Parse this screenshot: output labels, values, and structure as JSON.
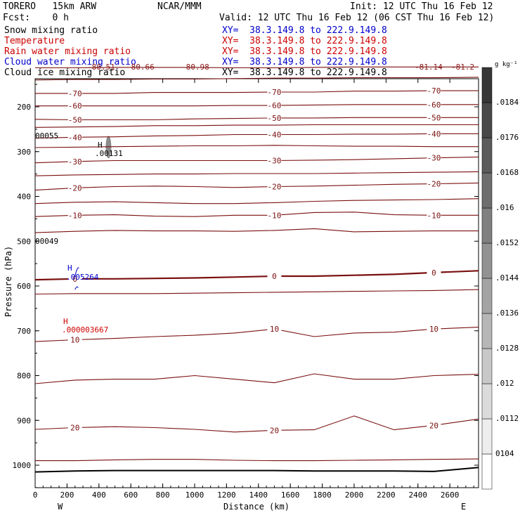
{
  "header": {
    "model": "TORERO   15km ARW",
    "center": "NCAR/MMM",
    "init": "Init: 12 UTC Thu 16 Feb 12",
    "fcst": "Fcst:    0 h",
    "valid": "Valid: 12 UTC Thu 16 Feb 12 (06 CST Thu 16 Feb 12)"
  },
  "legend": [
    {
      "label": "Snow mixing ratio",
      "xy": "XY=  38.3.149.8 to 222.9.149.8",
      "color": "#000000"
    },
    {
      "label": "Temperature",
      "xy": "XY=  38.3.149.8 to 222.9.149.8",
      "color": "#cc0000"
    },
    {
      "label": "Rain water mixing ratio",
      "xy": "XY=  38.3.149.8 to 222.9.149.8",
      "color": "#cc0000"
    },
    {
      "label": "Cloud water mixing ratio",
      "xy": "XY=  38.3.149.8 to 222.9.149.8",
      "color": "#0000cc"
    },
    {
      "label": "Cloud ice mixing ratio",
      "xy": "XY=  38.3.149.8 to 222.9.149.8",
      "color": "#000000"
    }
  ],
  "colorbar": {
    "unit": "g kg⁻¹",
    "ticks": [
      "0104",
      ".0112",
      ".012",
      ".0128",
      ".0136",
      ".0144",
      ".0152",
      ".016",
      ".0168",
      ".0176",
      ".0184"
    ]
  },
  "annotations": {
    "snow_max": ".00131",
    "cloud_water_max": ".005264",
    "rain_max": ".000003667",
    "left_300": "00055",
    "left_500": "00049",
    "h_letter": "H",
    "top_minus80_labels": [
      "-80.51",
      "-80.66",
      "-80.98",
      "-81.14",
      "-81.2"
    ]
  },
  "chart_data": {
    "type": "contour",
    "xlabel": "Distance (km)",
    "ylabel": "Pressure (hPa)",
    "x_ticks": [
      0,
      200,
      400,
      600,
      800,
      1000,
      1200,
      1400,
      1600,
      1800,
      2000,
      2200,
      2400,
      2600
    ],
    "y_ticks": [
      200,
      300,
      400,
      500,
      600,
      700,
      800,
      900,
      1000
    ],
    "xlim": [
      0,
      2780
    ],
    "ylim": [
      1050,
      110
    ],
    "x_end_labels": {
      "left": "W",
      "right": "E"
    },
    "temperature_contours": [
      {
        "level": -80,
        "p": [
          113,
          113,
          112,
          112,
          112,
          113,
          113,
          112,
          111,
          111,
          111,
          111
        ]
      },
      {
        "level": -75,
        "p": [
          140,
          139,
          139,
          138,
          138,
          137,
          136,
          136,
          135,
          135,
          135,
          134
        ]
      },
      {
        "level": -70,
        "p": [
          170,
          170,
          170,
          168,
          168,
          168,
          167,
          167,
          165,
          165,
          164,
          164
        ]
      },
      {
        "level": -60,
        "p": [
          198,
          198,
          198,
          198,
          198,
          197,
          197,
          196,
          195,
          195,
          195,
          195
        ]
      },
      {
        "level": -50,
        "p": [
          228,
          229,
          229,
          229,
          227,
          226,
          225,
          225,
          224,
          224,
          224,
          224
        ]
      },
      {
        "level": -45,
        "p": [
          246,
          245,
          244,
          242,
          242,
          241,
          241,
          240,
          240,
          240,
          240,
          240
        ]
      },
      {
        "level": -40,
        "p": [
          270,
          268,
          267,
          265,
          264,
          262,
          262,
          262,
          261,
          261,
          260,
          260
        ]
      },
      {
        "level": -35,
        "p": [
          291,
          290,
          289,
          288,
          287,
          287,
          286,
          287,
          288,
          288,
          289,
          289
        ]
      },
      {
        "level": -30,
        "p": [
          325,
          322,
          320,
          320,
          320,
          320,
          320,
          319,
          318,
          316,
          314,
          312
        ]
      },
      {
        "level": -25,
        "p": [
          354,
          352,
          351,
          350,
          350,
          349,
          349,
          349,
          348,
          347,
          346,
          345
        ]
      },
      {
        "level": -20,
        "p": [
          386,
          381,
          378,
          377,
          378,
          380,
          378,
          377,
          375,
          373,
          372,
          370
        ]
      },
      {
        "level": -15,
        "p": [
          416,
          413,
          412,
          414,
          416,
          416,
          414,
          411,
          409,
          408,
          407,
          405
        ]
      },
      {
        "level": -10,
        "p": [
          445,
          442,
          441,
          444,
          445,
          442,
          442,
          436,
          435,
          441,
          442,
          442
        ]
      },
      {
        "level": -5,
        "p": [
          481,
          478,
          476,
          477,
          477,
          478,
          476,
          472,
          479,
          478,
          477,
          477
        ]
      },
      {
        "level": 0,
        "p": [
          586,
          584,
          584,
          583,
          582,
          580,
          578,
          578,
          576,
          574,
          570,
          566
        ]
      },
      {
        "level": 5,
        "p": [
          618,
          617,
          617,
          617,
          616,
          615,
          614,
          613,
          612,
          611,
          610,
          608
        ]
      },
      {
        "level": 10,
        "p": [
          724,
          720,
          717,
          713,
          710,
          705,
          696,
          713,
          705,
          703,
          696,
          692
        ]
      },
      {
        "level": 15,
        "p": [
          818,
          810,
          808,
          808,
          800,
          808,
          816,
          796,
          808,
          808,
          800,
          797
        ]
      },
      {
        "level": 20,
        "p": [
          920,
          916,
          914,
          916,
          920,
          926,
          922,
          921,
          890,
          921,
          911,
          897
        ]
      },
      {
        "level": 25,
        "p": [
          990,
          990,
          988,
          987,
          987,
          989,
          990,
          990,
          989,
          988,
          987,
          986
        ]
      }
    ],
    "contour_x_km": [
      0,
      250,
      500,
      750,
      1000,
      1250,
      1500,
      1750,
      2000,
      2250,
      2500,
      2780
    ],
    "surface_p": [
      1015,
      1013,
      1012,
      1012,
      1012,
      1012,
      1012,
      1013,
      1013,
      1013,
      1014,
      1005
    ]
  }
}
